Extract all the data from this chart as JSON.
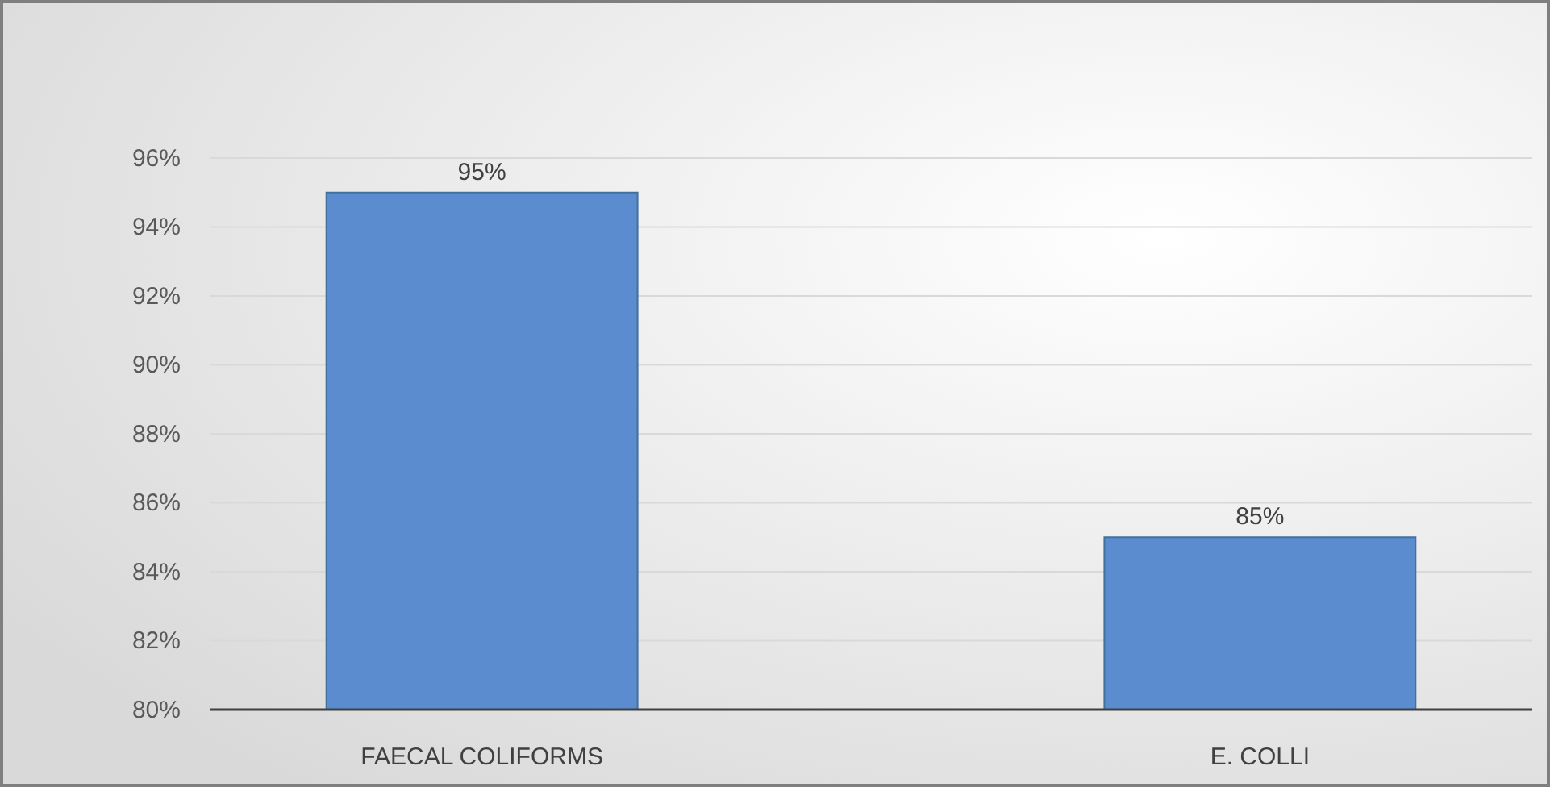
{
  "chart_data": {
    "type": "bar",
    "categories": [
      "FAECAL COLIFORMS",
      "E. COLLI"
    ],
    "values": [
      95,
      85
    ],
    "color": "#5b8ccf",
    "value_labels": [
      "95%",
      "85%"
    ],
    "ylim": [
      80,
      96
    ],
    "yticks": [
      {
        "value": 80,
        "label": "80%"
      },
      {
        "value": 82,
        "label": "82%"
      },
      {
        "value": 84,
        "label": "84%"
      },
      {
        "value": 86,
        "label": "86%"
      },
      {
        "value": 88,
        "label": "88%"
      },
      {
        "value": 90,
        "label": "90%"
      },
      {
        "value": 92,
        "label": "92%"
      },
      {
        "value": 94,
        "label": "94%"
      },
      {
        "value": 96,
        "label": "96%"
      }
    ],
    "grid": "y"
  }
}
